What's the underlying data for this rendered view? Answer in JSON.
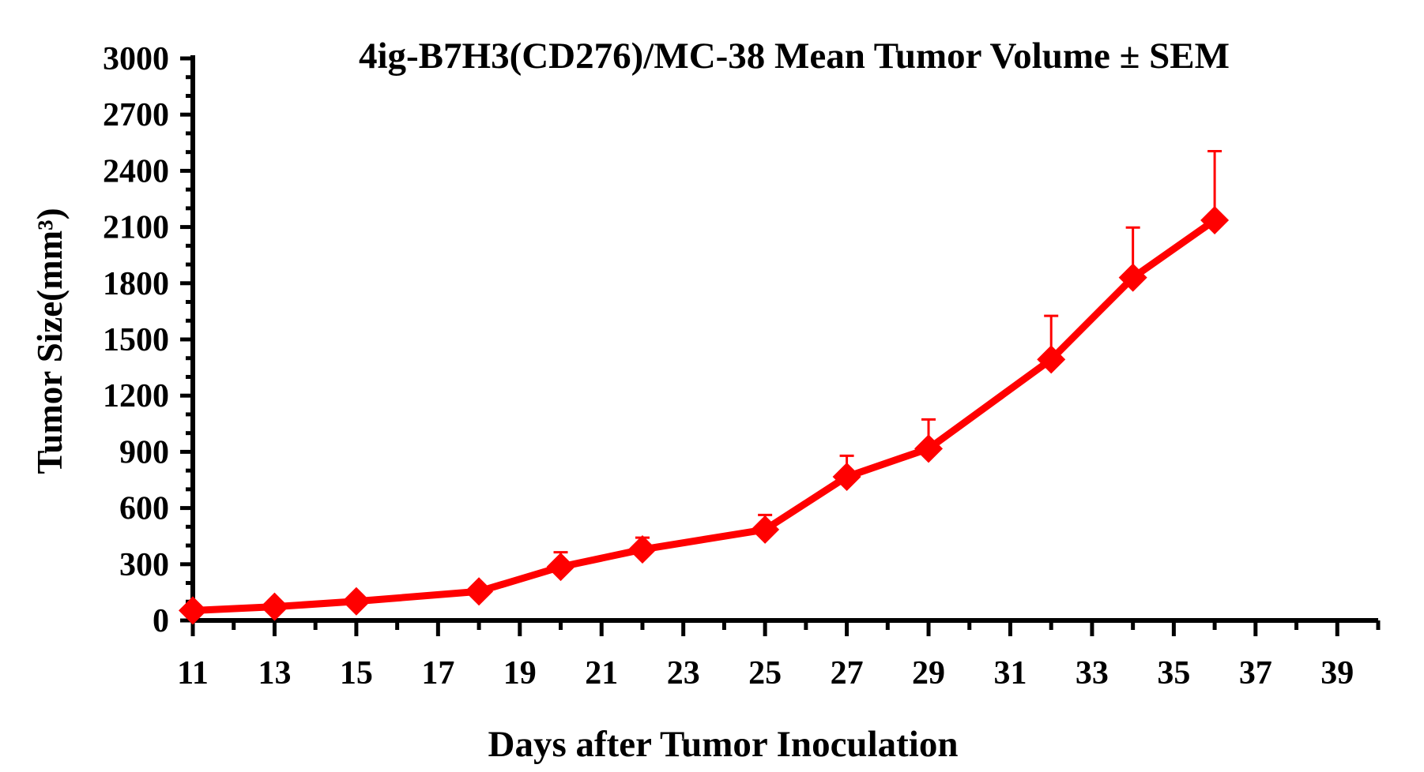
{
  "chart_data": {
    "type": "line",
    "title": "4ig-B7H3(CD276)/MC-38 Mean Tumor Volume ± SEM",
    "xlabel": "Days after Tumor Inoculation",
    "ylabel": "Tumor Size(mm³)",
    "xlim": [
      11,
      40
    ],
    "ylim": [
      0,
      3000
    ],
    "xticks": [
      11,
      13,
      15,
      17,
      19,
      21,
      23,
      25,
      27,
      29,
      31,
      33,
      35,
      37,
      39
    ],
    "yticks": [
      0,
      300,
      600,
      900,
      1200,
      1500,
      1800,
      2100,
      2400,
      2700,
      3000
    ],
    "grid": false,
    "colors": {
      "series": "#ff0000",
      "axis": "#000000"
    },
    "series": [
      {
        "marker": "diamond",
        "x": [
          11,
          13,
          15,
          18,
          20,
          22,
          25,
          27,
          29,
          32,
          34,
          36
        ],
        "y": [
          53,
          73,
          102,
          155,
          286,
          379,
          485,
          767,
          917,
          1393,
          1830,
          2136
        ],
        "sem": [
          0,
          0,
          0,
          0,
          78,
          63,
          78,
          112,
          156,
          233,
          267,
          369
        ]
      }
    ]
  }
}
